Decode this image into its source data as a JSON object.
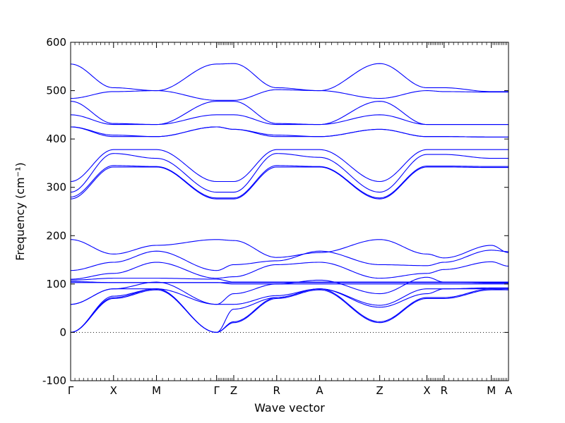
{
  "chart_data": {
    "type": "line",
    "title": "",
    "xlabel": "Wave vector",
    "ylabel": "Frequency (cm⁻¹)",
    "ylim": [
      -100,
      600
    ],
    "yticks": [
      -100,
      0,
      100,
      200,
      300,
      400,
      500,
      600
    ],
    "grid": false,
    "legend": "none",
    "line_color": "#0000ff",
    "zero_line": {
      "y": 0,
      "style": "dotted",
      "color": "#000000"
    },
    "xlim": [
      0,
      10.2
    ],
    "high_symmetry_points": [
      {
        "label": "Γ",
        "x": 0
      },
      {
        "label": "X",
        "x": 1.0
      },
      {
        "label": "M",
        "x": 2.0
      },
      {
        "label": "Γ",
        "x": 3.4
      },
      {
        "label": "Z",
        "x": 3.8
      },
      {
        "label": "R",
        "x": 4.8
      },
      {
        "label": "A",
        "x": 5.8
      },
      {
        "label": "Z",
        "x": 7.2
      },
      {
        "label": "X",
        "x": 8.3
      },
      {
        "label": "R",
        "x": 8.7
      },
      {
        "label": "M",
        "x": 9.8
      },
      {
        "label": "A",
        "x": 10.2
      }
    ],
    "series": [
      {
        "values": [
          555,
          506,
          500,
          555,
          556,
          506,
          500,
          556,
          506,
          506,
          498,
          498
        ]
      },
      {
        "values": [
          484,
          498,
          500,
          480,
          480,
          502,
          500,
          484,
          500,
          498,
          497,
          497
        ]
      },
      {
        "values": [
          478,
          432,
          430,
          478,
          478,
          432,
          430,
          478,
          430,
          430,
          430,
          430
        ]
      },
      {
        "values": [
          450,
          430,
          430,
          450,
          450,
          430,
          430,
          450,
          430,
          430,
          430,
          430
        ]
      },
      {
        "values": [
          425,
          408,
          405,
          425,
          420,
          408,
          405,
          420,
          405,
          405,
          404,
          404
        ]
      },
      {
        "values": [
          425,
          405,
          405,
          425,
          420,
          405,
          405,
          420,
          405,
          405,
          404,
          404
        ]
      },
      {
        "values": [
          312,
          378,
          378,
          312,
          312,
          378,
          378,
          312,
          378,
          378,
          378,
          378
        ]
      },
      {
        "values": [
          290,
          370,
          360,
          290,
          290,
          370,
          362,
          290,
          368,
          368,
          360,
          360
        ]
      },
      {
        "values": [
          280,
          345,
          343,
          278,
          278,
          345,
          343,
          278,
          344,
          344,
          343,
          343
        ]
      },
      {
        "values": [
          276,
          342,
          342,
          276,
          276,
          342,
          342,
          276,
          342,
          342,
          341,
          341
        ]
      },
      {
        "values": [
          192,
          162,
          180,
          192,
          190,
          155,
          165,
          192,
          162,
          154,
          180,
          165
        ]
      },
      {
        "values": [
          128,
          145,
          168,
          128,
          140,
          148,
          168,
          140,
          138,
          145,
          170,
          167
        ]
      },
      {
        "values": [
          110,
          122,
          145,
          112,
          115,
          140,
          145,
          112,
          122,
          130,
          146,
          137
        ]
      },
      {
        "values": [
          108,
          112,
          112,
          110,
          104,
          104,
          104,
          104,
          104,
          104,
          104,
          104
        ]
      },
      {
        "values": [
          105,
          103,
          103,
          103,
          103,
          103,
          103,
          103,
          103,
          103,
          103,
          103
        ]
      },
      {
        "values": [
          103,
          103,
          103,
          103,
          100,
          100,
          100,
          100,
          100,
          100,
          100,
          100
        ]
      },
      {
        "values": [
          58,
          90,
          104,
          58,
          80,
          100,
          108,
          80,
          114,
          104,
          102,
          102
        ]
      },
      {
        "values": [
          58,
          90,
          90,
          58,
          58,
          76,
          90,
          56,
          90,
          90,
          90,
          90
        ]
      },
      {
        "values": [
          0,
          75,
          90,
          0,
          48,
          72,
          90,
          52,
          80,
          90,
          92,
          92
        ]
      },
      {
        "values": [
          0,
          72,
          90,
          0,
          22,
          72,
          90,
          22,
          72,
          72,
          90,
          88
        ]
      },
      {
        "values": [
          0,
          70,
          88,
          0,
          20,
          70,
          88,
          20,
          70,
          70,
          88,
          88
        ]
      }
    ]
  }
}
